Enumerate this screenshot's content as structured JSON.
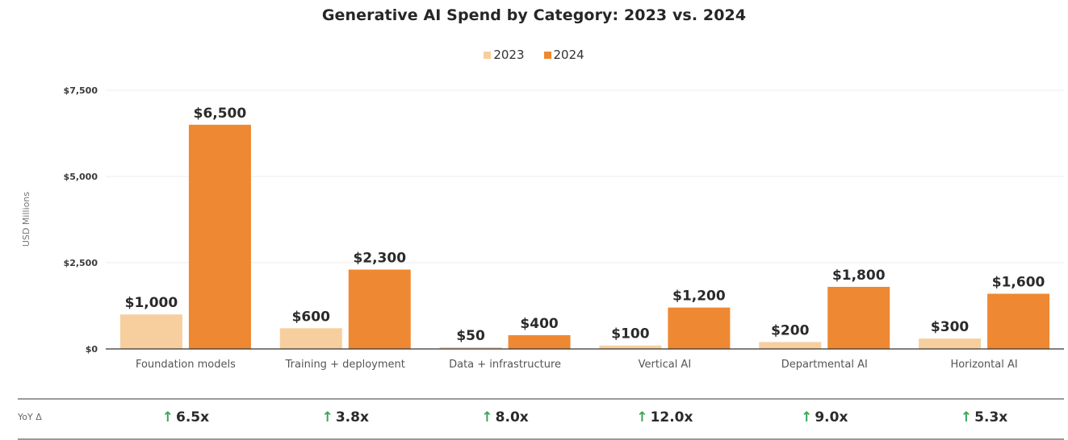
{
  "chart_data": {
    "type": "bar",
    "title": "Generative AI Spend by Category: 2023 vs. 2024",
    "xlabel": "",
    "ylabel": "USD Millions",
    "ylim": [
      0,
      7500
    ],
    "yticks": [
      0,
      2500,
      5000,
      7500
    ],
    "ytick_labels": [
      "$0",
      "$2,500",
      "$5,000",
      "$7,500"
    ],
    "grid": true,
    "legend_position": "top-center",
    "categories": [
      "Foundation models",
      "Training + deployment",
      "Data + infrastructure",
      "Vertical AI",
      "Departmental AI",
      "Horizontal AI"
    ],
    "series": [
      {
        "name": "2023",
        "color": "#f7cf9f",
        "values": [
          1000,
          600,
          50,
          100,
          200,
          300
        ],
        "labels": [
          "$1,000",
          "$600",
          "$50",
          "$100",
          "$200",
          "$300"
        ]
      },
      {
        "name": "2024",
        "color": "#ef8832",
        "values": [
          6500,
          2300,
          400,
          1200,
          1800,
          1600
        ],
        "labels": [
          "$6,500",
          "$2,300",
          "$400",
          "$1,200",
          "$1,800",
          "$1,600"
        ]
      }
    ]
  },
  "yoy": {
    "label": "YoY Δ",
    "arrow": "↑",
    "arrow_color": "#3aa655",
    "values": [
      "6.5x",
      "3.8x",
      "8.0x",
      "12.0x",
      "9.0x",
      "5.3x"
    ]
  }
}
